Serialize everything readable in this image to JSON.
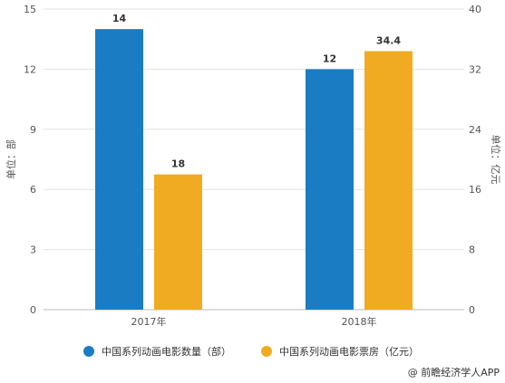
{
  "chart_data": {
    "type": "bar",
    "categories": [
      "2017年",
      "2018年"
    ],
    "series": [
      {
        "name": "中国系列动画电影数量（部）",
        "values": [
          14,
          12
        ],
        "axis": "left",
        "color": "#1a7dc4",
        "labels": [
          "14",
          "12"
        ]
      },
      {
        "name": "中国系列动画电影票房（亿元）",
        "values": [
          18,
          34.4
        ],
        "axis": "right",
        "color": "#f0ab22",
        "labels": [
          "18",
          "34.4"
        ]
      }
    ],
    "ylabel_left": "单位：部",
    "ylabel_right": "单位：亿元",
    "ylim_left": [
      0,
      15
    ],
    "yticks_left": [
      "0",
      "3",
      "6",
      "9",
      "12",
      "15"
    ],
    "ylim_right": [
      0,
      40
    ],
    "yticks_right": [
      "0",
      "8",
      "16",
      "24",
      "32",
      "40"
    ],
    "grid": true,
    "legend_position": "bottom"
  },
  "source": "@ 前瞻经济学人APP",
  "colors": {
    "grid": "#e3e3e3",
    "axis_text": "#555555",
    "label_text": "#333333"
  }
}
